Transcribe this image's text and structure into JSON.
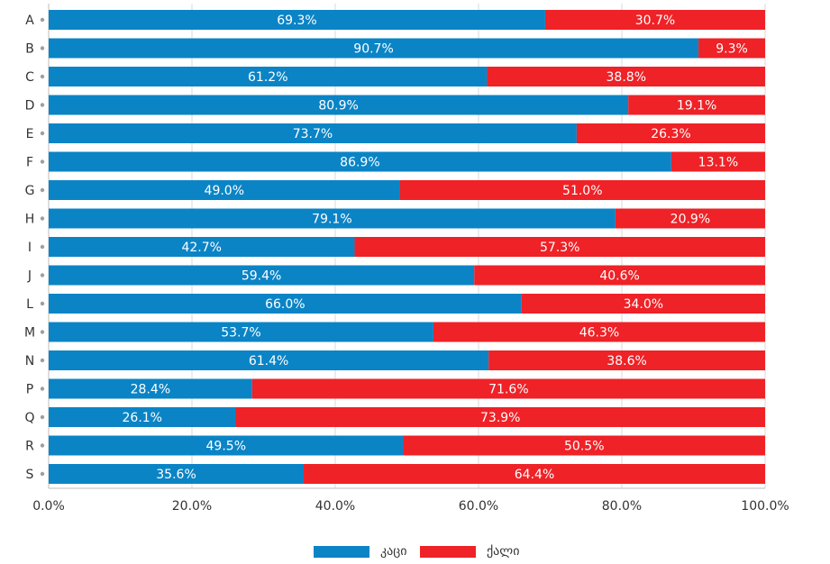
{
  "chart_data": {
    "type": "bar",
    "orientation": "horizontal",
    "stacked": true,
    "categories": [
      "A",
      "B",
      "C",
      "D",
      "E",
      "F",
      "G",
      "H",
      "I",
      "J",
      "L",
      "M",
      "N",
      "P",
      "Q",
      "R",
      "S"
    ],
    "series": [
      {
        "name": "კაცი",
        "color": "#0b84c6",
        "values": [
          69.3,
          90.7,
          61.2,
          80.9,
          73.7,
          86.9,
          49.0,
          79.1,
          42.7,
          59.4,
          66.0,
          53.7,
          61.4,
          28.4,
          26.1,
          49.5,
          35.6
        ]
      },
      {
        "name": "ქალი",
        "color": "#ee2227",
        "values": [
          30.7,
          9.3,
          38.8,
          19.1,
          26.3,
          13.1,
          51.0,
          20.9,
          57.3,
          40.6,
          34.0,
          46.3,
          38.6,
          71.6,
          73.9,
          50.5,
          64.4
        ]
      }
    ],
    "xlim": [
      0,
      100
    ],
    "x_ticks": [
      "0.0%",
      "20.0%",
      "40.0%",
      "60.0%",
      "80.0%",
      "100.0%"
    ],
    "value_format": "percent_1dp",
    "gridlines": true,
    "legend_position": "bottom",
    "title": "",
    "xlabel": "",
    "ylabel": ""
  }
}
